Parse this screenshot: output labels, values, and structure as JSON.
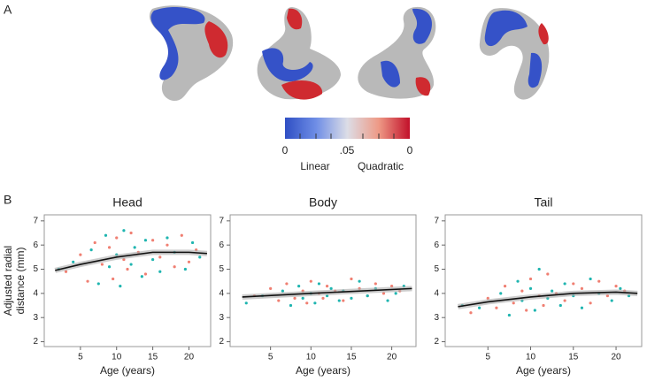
{
  "panel_labels": [
    "A",
    "B"
  ],
  "colorbar": {
    "ticks": [
      "0",
      ".05",
      "0"
    ],
    "labels": [
      "Linear",
      "Quadratic"
    ]
  },
  "chart_data": [
    {
      "type": "scatter",
      "title": "Head",
      "xlabel": "Age (years)",
      "ylabel": [
        "Adjusted radial",
        "distance (mm)"
      ],
      "xlim": [
        0,
        23
      ],
      "xticks": [
        5,
        10,
        15,
        20
      ],
      "ylim": [
        1.8,
        7.25
      ],
      "yticks": [
        2,
        3,
        4,
        5,
        6,
        7
      ],
      "series": [
        {
          "color": "#f07f72",
          "x": [
            3,
            5,
            6,
            7,
            8,
            9,
            9.5,
            10,
            11,
            11.5,
            12,
            13,
            14,
            15,
            16,
            17,
            18,
            19,
            20,
            21
          ],
          "values": [
            4.9,
            5.6,
            4.5,
            6.1,
            5.2,
            5.9,
            4.6,
            6.3,
            5.4,
            5.0,
            6.5,
            5.7,
            4.8,
            6.2,
            5.5,
            6.0,
            5.1,
            6.4,
            5.3,
            5.8
          ]
        },
        {
          "color": "#1fb5b0",
          "x": [
            2,
            4,
            6.5,
            7.5,
            8.5,
            9,
            10,
            10.5,
            11,
            12,
            12.5,
            13.5,
            14,
            15,
            16,
            17,
            18,
            19.5,
            20.5,
            21.5
          ],
          "values": [
            5.0,
            5.3,
            5.8,
            4.4,
            6.4,
            5.1,
            5.6,
            4.3,
            6.6,
            5.2,
            5.9,
            4.7,
            6.2,
            5.4,
            4.9,
            6.3,
            5.7,
            5.0,
            6.1,
            5.5
          ]
        },
        {
          "type": "line",
          "color": "#111111",
          "x": [
            1.5,
            5,
            10,
            15,
            20,
            22.5
          ],
          "values": [
            4.95,
            5.2,
            5.5,
            5.7,
            5.7,
            5.65
          ]
        }
      ]
    },
    {
      "type": "scatter",
      "title": "Body",
      "xlabel": "Age (years)",
      "xlim": [
        0,
        23
      ],
      "xticks": [
        5,
        10,
        15,
        20
      ],
      "ylim": [
        1.8,
        7.25
      ],
      "yticks": [
        2,
        3,
        4,
        5,
        6,
        7
      ],
      "series": [
        {
          "color": "#f07f72",
          "x": [
            3,
            5,
            6,
            7,
            8,
            9,
            9.5,
            10,
            11,
            11.5,
            12,
            13,
            14,
            15,
            16,
            17,
            18,
            19,
            20,
            21
          ],
          "values": [
            3.9,
            4.2,
            3.7,
            4.4,
            3.8,
            4.1,
            3.6,
            4.5,
            4.0,
            3.8,
            4.3,
            4.1,
            3.7,
            4.6,
            4.2,
            3.9,
            4.4,
            4.0,
            4.3,
            4.1
          ]
        },
        {
          "color": "#1fb5b0",
          "x": [
            2,
            4,
            6.5,
            7.5,
            8.5,
            9,
            10,
            10.5,
            11,
            12,
            12.5,
            13.5,
            14,
            15,
            16,
            17,
            18,
            19.5,
            20.5,
            21.5
          ],
          "values": [
            3.6,
            3.9,
            4.1,
            3.5,
            4.3,
            3.8,
            4.0,
            3.6,
            4.4,
            3.9,
            4.2,
            3.7,
            4.1,
            3.8,
            4.5,
            3.9,
            4.2,
            3.7,
            4.0,
            4.3
          ]
        },
        {
          "type": "line",
          "color": "#111111",
          "x": [
            1.5,
            10,
            22.5
          ],
          "values": [
            3.85,
            4.0,
            4.2
          ]
        }
      ]
    },
    {
      "type": "scatter",
      "title": "Tail",
      "xlabel": "Age (years)",
      "xlim": [
        0,
        23
      ],
      "xticks": [
        5,
        10,
        15,
        20
      ],
      "ylim": [
        1.8,
        7.25
      ],
      "yticks": [
        2,
        3,
        4,
        5,
        6,
        7
      ],
      "series": [
        {
          "color": "#f07f72",
          "x": [
            3,
            5,
            6,
            7,
            8,
            9,
            9.5,
            10,
            11,
            11.5,
            12,
            13,
            14,
            15,
            16,
            17,
            18,
            19,
            20,
            21
          ],
          "values": [
            3.2,
            3.8,
            3.4,
            4.3,
            3.6,
            4.1,
            3.3,
            4.6,
            3.9,
            3.5,
            4.8,
            4.0,
            3.7,
            4.4,
            4.2,
            3.6,
            4.5,
            3.9,
            4.3,
            4.1
          ]
        },
        {
          "color": "#1fb5b0",
          "x": [
            2,
            4,
            6.5,
            7.5,
            8.5,
            9,
            10,
            10.5,
            11,
            12,
            12.5,
            13.5,
            14,
            15,
            16,
            17,
            18,
            19.5,
            20.5,
            21.5
          ],
          "values": [
            3.5,
            3.4,
            4.0,
            3.1,
            4.5,
            3.7,
            4.2,
            3.3,
            5.0,
            3.8,
            4.1,
            3.5,
            4.4,
            3.9,
            3.4,
            4.6,
            4.0,
            3.7,
            4.2,
            3.9
          ]
        },
        {
          "type": "line",
          "color": "#111111",
          "x": [
            1.5,
            5,
            10,
            15,
            20,
            22.5
          ],
          "values": [
            3.45,
            3.65,
            3.85,
            4.0,
            4.05,
            4.0
          ]
        }
      ]
    }
  ]
}
